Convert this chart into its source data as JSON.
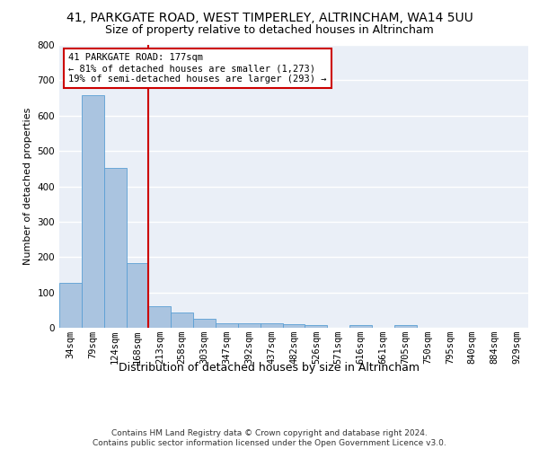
{
  "title1": "41, PARKGATE ROAD, WEST TIMPERLEY, ALTRINCHAM, WA14 5UU",
  "title2": "Size of property relative to detached houses in Altrincham",
  "xlabel": "Distribution of detached houses by size in Altrincham",
  "ylabel": "Number of detached properties",
  "categories": [
    "34sqm",
    "79sqm",
    "124sqm",
    "168sqm",
    "213sqm",
    "258sqm",
    "303sqm",
    "347sqm",
    "392sqm",
    "437sqm",
    "482sqm",
    "526sqm",
    "571sqm",
    "616sqm",
    "661sqm",
    "705sqm",
    "750sqm",
    "795sqm",
    "840sqm",
    "884sqm",
    "929sqm"
  ],
  "values": [
    128,
    657,
    452,
    184,
    60,
    43,
    25,
    12,
    13,
    12,
    9,
    7,
    0,
    8,
    0,
    8,
    0,
    0,
    0,
    0,
    0
  ],
  "bar_color": "#aac4e0",
  "bar_edge_color": "#5a9fd4",
  "vline_color": "#cc0000",
  "annotation_text": "41 PARKGATE ROAD: 177sqm\n← 81% of detached houses are smaller (1,273)\n19% of semi-detached houses are larger (293) →",
  "annotation_box_color": "#ffffff",
  "annotation_box_edge_color": "#cc0000",
  "ylim": [
    0,
    800
  ],
  "yticks": [
    0,
    100,
    200,
    300,
    400,
    500,
    600,
    700,
    800
  ],
  "background_color": "#eaeff7",
  "grid_color": "#ffffff",
  "footer_text": "Contains HM Land Registry data © Crown copyright and database right 2024.\nContains public sector information licensed under the Open Government Licence v3.0.",
  "title1_fontsize": 10,
  "title2_fontsize": 9,
  "xlabel_fontsize": 9,
  "ylabel_fontsize": 8,
  "tick_fontsize": 7.5,
  "annotation_fontsize": 7.5,
  "footer_fontsize": 6.5
}
